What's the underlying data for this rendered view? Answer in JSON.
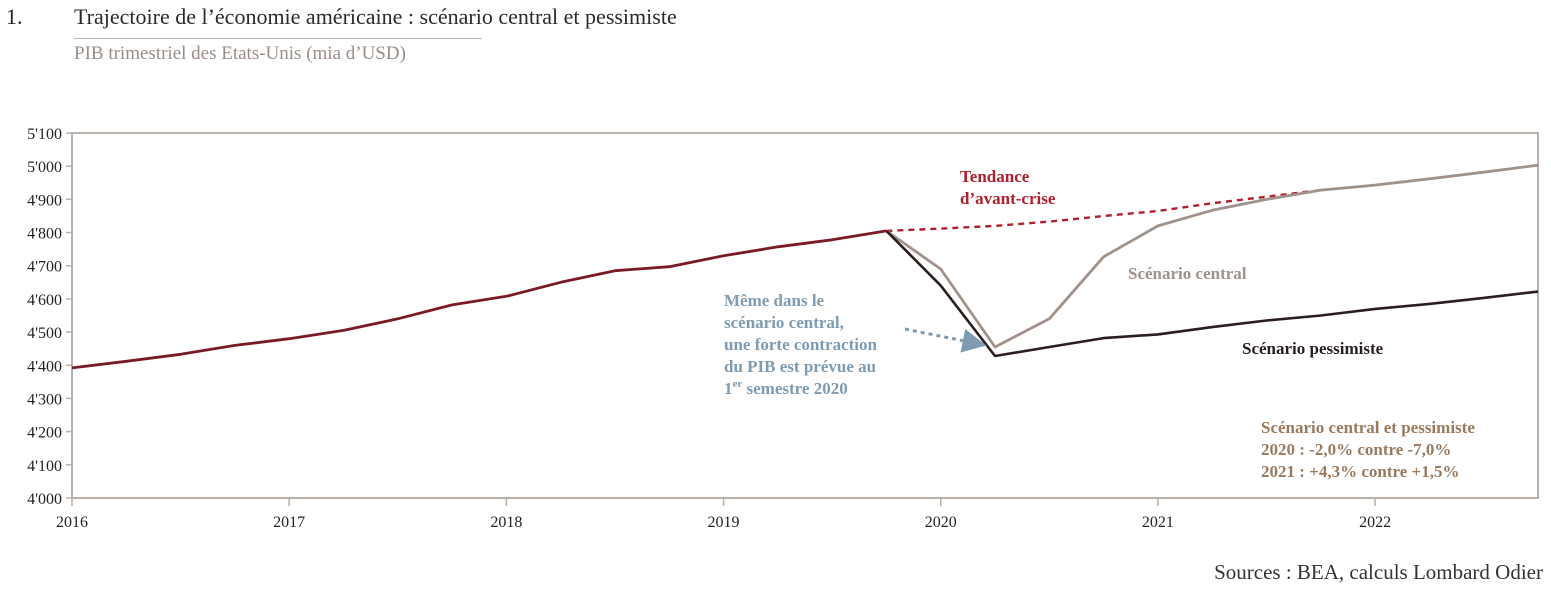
{
  "figure": {
    "number": "1.",
    "title": "Trajectoire de l’économie américaine : scénario central et pessimiste",
    "subtitle": "PIB trimestriel des Etats-Unis (mia d’USD)",
    "source": "Sources : BEA, calculs Lombard Odier"
  },
  "colors": {
    "historical": "#7a1a24",
    "trend": "#b0202e",
    "central": "#a0918a",
    "pessimistic": "#2b1e1e",
    "callout": "#7d9bb2",
    "box": "#9a7a5e",
    "axis": "#b9b0aa"
  },
  "chart_data": {
    "type": "line",
    "xlim": [
      2016.0,
      2022.75
    ],
    "ylim": [
      4000,
      5100
    ],
    "x_ticks": [
      2016,
      2017,
      2018,
      2019,
      2020,
      2021,
      2022
    ],
    "x_tick_labels": [
      "2016",
      "2017",
      "2018",
      "2019",
      "2020",
      "2021",
      "2022"
    ],
    "y_ticks": [
      4000,
      4100,
      4200,
      4300,
      4400,
      4500,
      4600,
      4700,
      4800,
      4900,
      5000,
      5100
    ],
    "y_tick_labels": [
      "4'000",
      "4'100",
      "4'200",
      "4'300",
      "4'400",
      "4'500",
      "4'600",
      "4'700",
      "4'800",
      "4'900",
      "5'000",
      "5'100"
    ],
    "grid": false,
    "series": [
      {
        "key": "historical",
        "style": "solid",
        "x": [
          2016.0,
          2016.25,
          2016.5,
          2016.75,
          2017.0,
          2017.25,
          2017.5,
          2017.75,
          2018.0,
          2018.25,
          2018.5,
          2018.75,
          2019.0,
          2019.25,
          2019.5,
          2019.75
        ],
        "y": [
          4392,
          4412,
          4433,
          4460,
          4480,
          4505,
          4540,
          4582,
          4608,
          4650,
          4685,
          4697,
          4730,
          4757,
          4778,
          4805
        ]
      },
      {
        "key": "trend",
        "name": "Tendance d’avant-crise",
        "style": "dashed",
        "x": [
          2019.75,
          2020.0,
          2020.25,
          2020.5,
          2020.75,
          2021.0,
          2021.25,
          2021.5,
          2021.75
        ],
        "y": [
          4805,
          4812,
          4820,
          4833,
          4850,
          4865,
          4888,
          4908,
          4928
        ]
      },
      {
        "key": "central",
        "name": "Scénario central",
        "style": "solid",
        "x": [
          2019.75,
          2020.0,
          2020.25,
          2020.5,
          2020.75,
          2021.0,
          2021.25,
          2021.5,
          2021.75,
          2022.0,
          2022.25,
          2022.5,
          2022.75
        ],
        "y": [
          4805,
          4690,
          4455,
          4540,
          4727,
          4820,
          4867,
          4900,
          4928,
          4943,
          4962,
          4982,
          5003
        ]
      },
      {
        "key": "pessimistic",
        "name": "Scénario pessimiste",
        "style": "solid",
        "x": [
          2019.75,
          2020.0,
          2020.25,
          2020.5,
          2020.75,
          2021.0,
          2021.25,
          2021.5,
          2021.75,
          2022.0,
          2022.25,
          2022.5,
          2022.75
        ],
        "y": [
          4805,
          4640,
          4428,
          4455,
          4482,
          4493,
          4515,
          4535,
          4550,
          4570,
          4585,
          4603,
          4622
        ]
      }
    ],
    "annotations": {
      "trend_label": [
        "Tendance",
        "d’avant-crise"
      ],
      "central_label": "Scénario central",
      "pessimistic_label": "Scénario pessimiste",
      "callout": [
        "Même dans le",
        "scénario central,",
        "une forte contraction",
        "du PIB est prévue au"
      ],
      "callout_last": "1",
      "callout_sup": "er",
      "callout_rest": " semestre 2020",
      "box_title": "Scénario central et pessimiste",
      "box_line1": "2020 :  -2,0% contre -7,0%",
      "box_line2": "2021 :  +4,3% contre +1,5%"
    }
  }
}
